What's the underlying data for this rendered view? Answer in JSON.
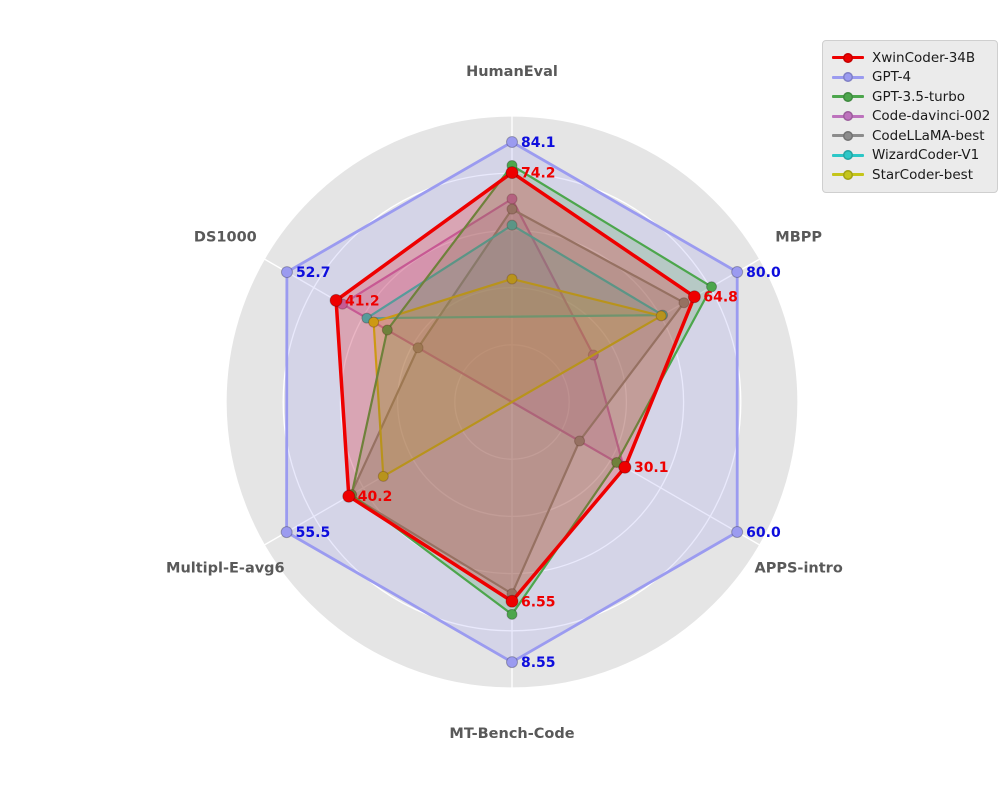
{
  "colors": {
    "figure_bg": "#ffffff",
    "disc_bg": "#e5e5e5",
    "grid": "#ffffff",
    "axis_label": "#595959",
    "gpt4_label_blue": "#0d0ddd",
    "xwin_label_red": "#ee0000"
  },
  "legend": {
    "items": [
      {
        "label": "XwinCoder-34B",
        "color": "#ee0000"
      },
      {
        "label": "GPT-4",
        "color": "#9b9bf0"
      },
      {
        "label": "GPT-3.5-turbo",
        "color": "#4ca64c"
      },
      {
        "label": "Code-davinci-002",
        "color": "#bd72bd"
      },
      {
        "label": "CodeLLaMA-best",
        "color": "#8c8c8c"
      },
      {
        "label": "WizardCoder-V1",
        "color": "#2cc7c7"
      },
      {
        "label": "StarCoder-best",
        "color": "#c5c51a"
      }
    ]
  },
  "chart_data": {
    "type": "radar",
    "center": {
      "x": 512,
      "y": 402
    },
    "radius": 286,
    "rings": 5,
    "fill_alpha": 0.22,
    "start_angle_deg": -90,
    "axes": [
      {
        "label": "HumanEval",
        "max": 92.5
      },
      {
        "label": "MBPP",
        "max": 88.0
      },
      {
        "label": "APPS-intro",
        "max": 66.0
      },
      {
        "label": "MT-Bench-Code",
        "max": 9.4
      },
      {
        "label": "Multipl-E-avg6",
        "max": 61.0
      },
      {
        "label": "DS1000",
        "max": 58.0
      }
    ],
    "series": [
      {
        "name": "XwinCoder-34B",
        "color": "#ee0000",
        "line_width": 3.5,
        "marker_r": 6,
        "values": [
          74.2,
          64.8,
          30.1,
          6.55,
          40.2,
          41.2
        ],
        "value_labels": [
          "74.2",
          "64.8",
          "30.1",
          "6.55",
          "40.2",
          "41.2"
        ],
        "label_color": "#ee0000"
      },
      {
        "name": "GPT-4",
        "color": "#9b9bf0",
        "line_width": 2.8,
        "marker_r": 5.5,
        "values": [
          84.1,
          80.0,
          60.0,
          8.55,
          55.5,
          52.7
        ],
        "value_labels": [
          "84.1",
          "80.0",
          "60.0",
          "8.55",
          "55.5",
          "52.7"
        ],
        "label_color": "#0d0ddd"
      },
      {
        "name": "GPT-3.5-turbo",
        "color": "#4ca64c",
        "line_width": 2.2,
        "marker_r": 5,
        "values": [
          76.5,
          70.9,
          27.9,
          6.98,
          39.5,
          29.2
        ],
        "value_labels": null,
        "label_color": null
      },
      {
        "name": "Code-davinci-002",
        "color": "#bd72bd",
        "line_width": 2.2,
        "marker_r": 5,
        "values": [
          65.7,
          28.9,
          29.7,
          0,
          0,
          39.7
        ],
        "value_labels": null,
        "label_color": null
      },
      {
        "name": "CodeLLaMA-best",
        "color": "#8c8c8c",
        "line_width": 2.2,
        "marker_r": 5,
        "values": [
          62.4,
          61.1,
          18.0,
          6.3,
          39.8,
          22.0
        ],
        "value_labels": null,
        "label_color": null
      },
      {
        "name": "WizardCoder-V1",
        "color": "#2cc7c7",
        "line_width": 2.2,
        "marker_r": 5,
        "values": [
          57.2,
          53.5,
          null,
          null,
          null,
          34.0
        ],
        "value_labels": null,
        "label_color": null
      },
      {
        "name": "StarCoder-best",
        "color": "#c5c51a",
        "line_width": 2.2,
        "marker_r": 5,
        "values": [
          39.8,
          53.0,
          0,
          0,
          31.7,
          32.4
        ],
        "value_labels": null,
        "label_color": null
      }
    ],
    "draw_order": [
      1,
      3,
      4,
      5,
      6,
      2,
      0
    ],
    "legend_position": "top-right",
    "grid_on": true
  }
}
